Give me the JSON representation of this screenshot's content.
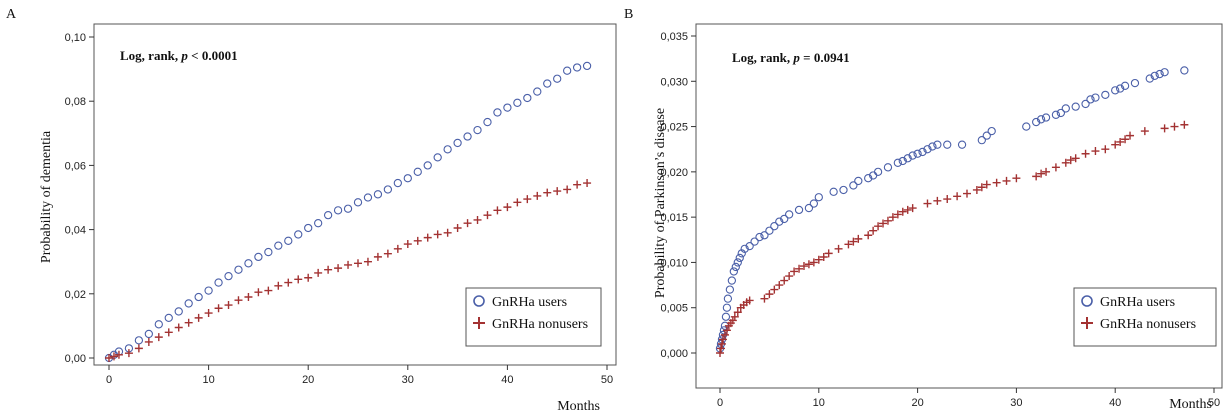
{
  "chart_data": [
    {
      "type": "scatter",
      "panel_label": "A",
      "xlabel": "Months",
      "ylabel": "Probability of dementia",
      "xlim": [
        0,
        50
      ],
      "ylim": [
        0,
        0.1
      ],
      "xticks": [
        0,
        10,
        20,
        30,
        40,
        50
      ],
      "yticks": [
        0,
        0.02,
        0.04,
        0.06,
        0.08,
        0.1
      ],
      "ytick_labels": [
        "0,00",
        "0,02",
        "0,04",
        "0,06",
        "0,08",
        "0,10"
      ],
      "xtick_labels": [
        "0",
        "10",
        "20",
        "30",
        "40",
        "50"
      ],
      "annotation_prefix": "Log, rank, ",
      "annotation_p": "p",
      "annotation_suffix": " < 0.0001",
      "legend_position": "bottom-right",
      "grid": false,
      "series": [
        {
          "name": "GnRHa users",
          "marker": "circle",
          "color": "#4a5fa8",
          "x": [
            0.0,
            0.5,
            1.0,
            2.0,
            3.0,
            4.0,
            5.0,
            6.0,
            7.0,
            8.0,
            9.0,
            10.0,
            11.0,
            12.0,
            13.0,
            14.0,
            15.0,
            16.0,
            17.0,
            18.0,
            19.0,
            20.0,
            21.0,
            22.0,
            23.0,
            24.0,
            25.0,
            26.0,
            27.0,
            28.0,
            29.0,
            30.0,
            31.0,
            32.0,
            33.0,
            34.0,
            35.0,
            36.0,
            37.0,
            38.0,
            39.0,
            40.0,
            41.0,
            42.0,
            43.0,
            44.0,
            45.0,
            46.0,
            47.0,
            48.0
          ],
          "y": [
            0.0,
            0.001,
            0.002,
            0.003,
            0.0055,
            0.0075,
            0.0105,
            0.0125,
            0.0145,
            0.017,
            0.019,
            0.021,
            0.0235,
            0.0255,
            0.0275,
            0.0295,
            0.0315,
            0.033,
            0.035,
            0.0365,
            0.0385,
            0.0405,
            0.042,
            0.0445,
            0.046,
            0.0465,
            0.0485,
            0.05,
            0.051,
            0.0525,
            0.0545,
            0.056,
            0.058,
            0.06,
            0.0625,
            0.065,
            0.067,
            0.069,
            0.071,
            0.0735,
            0.0765,
            0.078,
            0.0795,
            0.081,
            0.083,
            0.0855,
            0.087,
            0.0895,
            0.0905,
            0.091
          ]
        },
        {
          "name": "GnRHa nonusers",
          "marker": "plus",
          "color": "#a33232",
          "x": [
            0.0,
            0.5,
            1.0,
            2.0,
            3.0,
            4.0,
            5.0,
            6.0,
            7.0,
            8.0,
            9.0,
            10.0,
            11.0,
            12.0,
            13.0,
            14.0,
            15.0,
            16.0,
            17.0,
            18.0,
            19.0,
            20.0,
            21.0,
            22.0,
            23.0,
            24.0,
            25.0,
            26.0,
            27.0,
            28.0,
            29.0,
            30.0,
            31.0,
            32.0,
            33.0,
            34.0,
            35.0,
            36.0,
            37.0,
            38.0,
            39.0,
            40.0,
            41.0,
            42.0,
            43.0,
            44.0,
            45.0,
            46.0,
            47.0,
            48.0
          ],
          "y": [
            0.0,
            0.0005,
            0.001,
            0.0015,
            0.003,
            0.005,
            0.0065,
            0.008,
            0.0095,
            0.011,
            0.0125,
            0.014,
            0.0155,
            0.0165,
            0.018,
            0.019,
            0.0205,
            0.021,
            0.0225,
            0.0235,
            0.0245,
            0.025,
            0.0265,
            0.0275,
            0.028,
            0.029,
            0.0295,
            0.03,
            0.0315,
            0.0325,
            0.034,
            0.0355,
            0.0365,
            0.0375,
            0.0385,
            0.039,
            0.0405,
            0.042,
            0.043,
            0.0445,
            0.046,
            0.047,
            0.0485,
            0.0495,
            0.0505,
            0.0515,
            0.052,
            0.0525,
            0.054,
            0.0545
          ]
        }
      ]
    },
    {
      "type": "scatter",
      "panel_label": "B",
      "xlabel": "Months",
      "ylabel": "Probability of Parkinson’s disease",
      "xlim": [
        0,
        50
      ],
      "ylim": [
        0,
        0.035
      ],
      "xticks": [
        0,
        10,
        20,
        30,
        40,
        50
      ],
      "yticks": [
        0,
        0.005,
        0.01,
        0.015,
        0.02,
        0.025,
        0.03,
        0.035
      ],
      "ytick_labels": [
        "0,000",
        "0,005",
        "0,010",
        "0,015",
        "0,020",
        "0,025",
        "0,030",
        "0,035"
      ],
      "xtick_labels": [
        "0",
        "10",
        "20",
        "30",
        "40",
        "50"
      ],
      "annotation_prefix": "Log, rank, ",
      "annotation_p": "p",
      "annotation_suffix": " = 0.0941",
      "legend_position": "bottom-right",
      "grid": false,
      "series": [
        {
          "name": "GnRHa users",
          "marker": "circle",
          "color": "#4a5fa8",
          "x": [
            0.0,
            0.1,
            0.2,
            0.3,
            0.4,
            0.5,
            0.6,
            0.7,
            0.8,
            1.0,
            1.2,
            1.4,
            1.6,
            1.8,
            2.0,
            2.2,
            2.5,
            3.0,
            3.5,
            4.0,
            4.5,
            5.0,
            5.5,
            6.0,
            6.5,
            7.0,
            8.0,
            9.0,
            9.5,
            10.0,
            11.5,
            12.5,
            13.5,
            14.0,
            15.0,
            15.5,
            16.0,
            17.0,
            18.0,
            18.5,
            19.0,
            19.5,
            20.0,
            20.5,
            21.0,
            21.5,
            22.0,
            23.0,
            24.5,
            26.5,
            27.0,
            27.5,
            31.0,
            32.0,
            32.5,
            33.0,
            34.0,
            34.5,
            35.0,
            36.0,
            37.0,
            37.5,
            38.0,
            39.0,
            40.0,
            40.5,
            41.0,
            42.0,
            43.5,
            44.0,
            44.5,
            45.0,
            47.0
          ],
          "y": [
            0.0005,
            0.001,
            0.0015,
            0.002,
            0.0025,
            0.003,
            0.004,
            0.005,
            0.006,
            0.007,
            0.008,
            0.009,
            0.0095,
            0.01,
            0.0105,
            0.011,
            0.0115,
            0.0118,
            0.0123,
            0.0128,
            0.013,
            0.0135,
            0.014,
            0.0145,
            0.0148,
            0.0153,
            0.0158,
            0.016,
            0.0165,
            0.0172,
            0.0178,
            0.018,
            0.0185,
            0.019,
            0.0193,
            0.0196,
            0.02,
            0.0205,
            0.021,
            0.0212,
            0.0215,
            0.0218,
            0.022,
            0.0222,
            0.0225,
            0.0228,
            0.023,
            0.023,
            0.023,
            0.0235,
            0.024,
            0.0245,
            0.025,
            0.0255,
            0.0258,
            0.026,
            0.0263,
            0.0265,
            0.027,
            0.0272,
            0.0275,
            0.028,
            0.0282,
            0.0285,
            0.029,
            0.0292,
            0.0295,
            0.0298,
            0.0303,
            0.0306,
            0.0308,
            0.031,
            0.0312
          ]
        },
        {
          "name": "GnRHa nonusers",
          "marker": "plus",
          "color": "#a33232",
          "x": [
            0.0,
            0.1,
            0.2,
            0.3,
            0.5,
            0.7,
            0.9,
            1.1,
            1.3,
            1.5,
            1.8,
            2.1,
            2.4,
            2.7,
            3.0,
            4.5,
            5.0,
            5.5,
            6.0,
            6.5,
            7.0,
            7.5,
            8.0,
            8.5,
            9.0,
            9.5,
            10.0,
            10.5,
            11.0,
            12.0,
            13.0,
            13.5,
            14.0,
            15.0,
            15.5,
            16.0,
            16.5,
            17.0,
            17.5,
            18.0,
            18.5,
            19.0,
            19.5,
            21.0,
            22.0,
            23.0,
            24.0,
            25.0,
            26.0,
            26.5,
            27.0,
            28.0,
            29.0,
            30.0,
            32.0,
            32.5,
            33.0,
            34.0,
            35.0,
            35.5,
            36.0,
            37.0,
            38.0,
            39.0,
            40.0,
            40.5,
            41.0,
            41.5,
            43.0,
            45.0,
            46.0,
            47.0
          ],
          "y": [
            0.0,
            0.0005,
            0.001,
            0.0015,
            0.002,
            0.0025,
            0.003,
            0.0033,
            0.0036,
            0.004,
            0.0045,
            0.005,
            0.0053,
            0.0056,
            0.0058,
            0.006,
            0.0065,
            0.007,
            0.0075,
            0.008,
            0.0085,
            0.009,
            0.0093,
            0.0096,
            0.0098,
            0.01,
            0.0103,
            0.0106,
            0.011,
            0.0115,
            0.012,
            0.0123,
            0.0126,
            0.013,
            0.0135,
            0.014,
            0.0143,
            0.0146,
            0.015,
            0.0153,
            0.0156,
            0.0158,
            0.016,
            0.0165,
            0.0168,
            0.017,
            0.0173,
            0.0176,
            0.018,
            0.0183,
            0.0186,
            0.0188,
            0.019,
            0.0193,
            0.0195,
            0.0198,
            0.02,
            0.0205,
            0.021,
            0.0213,
            0.0215,
            0.022,
            0.0223,
            0.0225,
            0.023,
            0.0233,
            0.0236,
            0.024,
            0.0245,
            0.0248,
            0.025,
            0.0252
          ]
        }
      ]
    }
  ]
}
